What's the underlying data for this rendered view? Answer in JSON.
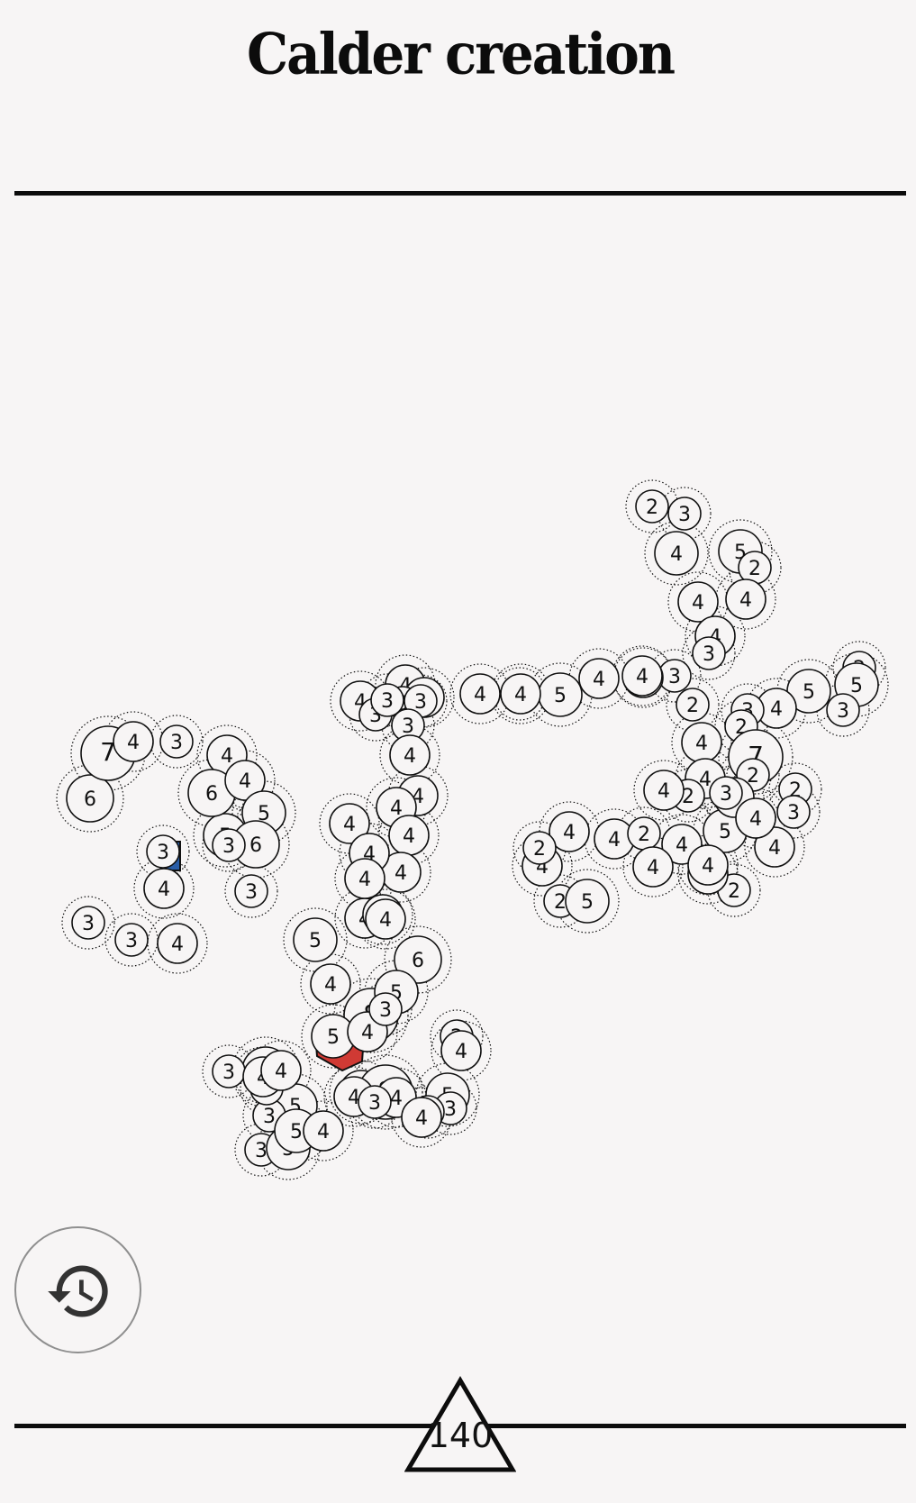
{
  "title": "Calder creation",
  "counter": {
    "value": "140"
  },
  "undo_button": {
    "icon": "history-icon"
  },
  "colors": {
    "ink": "#0c0c0c",
    "background": "#f7f5f5",
    "blue_piece": "#2a5ea8",
    "red_piece": "#d03a34"
  },
  "board": {
    "nodes": [
      "2",
      "3",
      "4",
      "5",
      "2",
      "4",
      "4",
      "4",
      "3",
      "3",
      "4",
      "2",
      "5",
      "4",
      "3",
      "2",
      "5",
      "3",
      "4",
      "2",
      "4",
      "7",
      "2",
      "5",
      "4",
      "4",
      "2",
      "2",
      "4",
      "4",
      "3",
      "3",
      "4",
      "2",
      "4",
      "4",
      "2",
      "5",
      "4",
      "4",
      "4",
      "2",
      "2",
      "4",
      "4",
      "4",
      "5",
      "3",
      "4",
      "4",
      "4",
      "4",
      "3",
      "3",
      "3",
      "4",
      "3",
      "3",
      "4",
      "4",
      "4",
      "4",
      "4",
      "4",
      "4",
      "4",
      "4",
      "4",
      "6",
      "4",
      "8",
      "5",
      "5",
      "4",
      "5",
      "4",
      "3",
      "5",
      "5",
      "8",
      "4",
      "2",
      "4",
      "6",
      "3",
      "4",
      "5",
      "3",
      "3",
      "5",
      "3",
      "5",
      "3",
      "4",
      "4",
      "4",
      "3",
      "3",
      "4",
      "5",
      "6",
      "7",
      "4",
      "3",
      "4",
      "6",
      "4",
      "5",
      "6",
      "3",
      "3",
      "3",
      "4",
      "3",
      "4",
      "3"
    ],
    "colored_pieces": [
      {
        "name": "blue-piece",
        "color": "#2a5ea8"
      },
      {
        "name": "red-piece",
        "color": "#d03a34"
      }
    ]
  }
}
